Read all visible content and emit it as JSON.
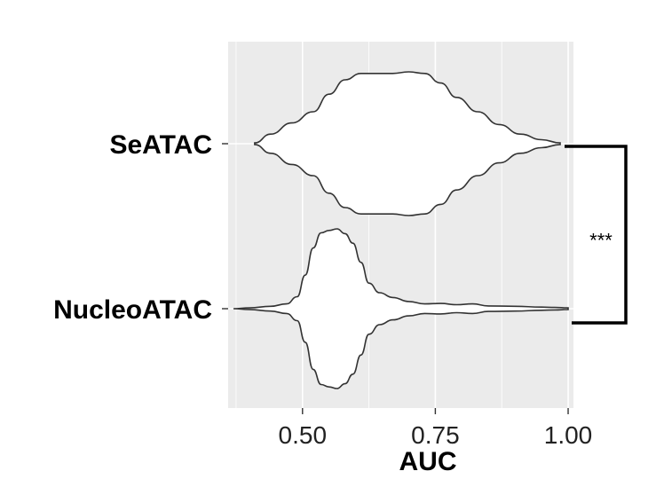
{
  "chart_data": {
    "type": "violin",
    "title": "",
    "xlabel": "AUC",
    "ylabel": "",
    "xlim": [
      0.36,
      1.01
    ],
    "x_ticks": [
      0.5,
      0.75,
      1.0
    ],
    "x_tick_labels": [
      "0.50",
      "0.75",
      "1.00"
    ],
    "grid": true,
    "background": "#ebebeb",
    "categories": [
      "SeATAC",
      "NucleoATAC"
    ],
    "series": [
      {
        "category": "SeATAC",
        "density": [
          [
            0.41,
            0.01
          ],
          [
            0.44,
            0.12
          ],
          [
            0.48,
            0.26
          ],
          [
            0.52,
            0.4
          ],
          [
            0.55,
            0.62
          ],
          [
            0.58,
            0.8
          ],
          [
            0.61,
            0.88
          ],
          [
            0.64,
            0.88
          ],
          [
            0.67,
            0.88
          ],
          [
            0.7,
            0.9
          ],
          [
            0.73,
            0.88
          ],
          [
            0.76,
            0.76
          ],
          [
            0.79,
            0.58
          ],
          [
            0.83,
            0.4
          ],
          [
            0.87,
            0.24
          ],
          [
            0.91,
            0.12
          ],
          [
            0.95,
            0.05
          ],
          [
            0.985,
            0.01
          ]
        ]
      },
      {
        "category": "NucleoATAC",
        "density": [
          [
            0.37,
            0.0
          ],
          [
            0.4,
            0.01
          ],
          [
            0.44,
            0.03
          ],
          [
            0.47,
            0.06
          ],
          [
            0.49,
            0.15
          ],
          [
            0.505,
            0.42
          ],
          [
            0.52,
            0.76
          ],
          [
            0.535,
            0.95
          ],
          [
            0.55,
            0.98
          ],
          [
            0.565,
            1.0
          ],
          [
            0.58,
            0.94
          ],
          [
            0.595,
            0.82
          ],
          [
            0.61,
            0.58
          ],
          [
            0.625,
            0.32
          ],
          [
            0.645,
            0.2
          ],
          [
            0.67,
            0.14
          ],
          [
            0.7,
            0.09
          ],
          [
            0.73,
            0.06
          ],
          [
            0.76,
            0.065
          ],
          [
            0.79,
            0.05
          ],
          [
            0.82,
            0.06
          ],
          [
            0.85,
            0.035
          ],
          [
            0.9,
            0.03
          ],
          [
            0.95,
            0.02
          ],
          [
            0.975,
            0.015
          ],
          [
            1.0,
            0.01
          ]
        ]
      }
    ],
    "annotation": {
      "label": "***",
      "between": [
        "SeATAC",
        "NucleoATAC"
      ]
    }
  }
}
